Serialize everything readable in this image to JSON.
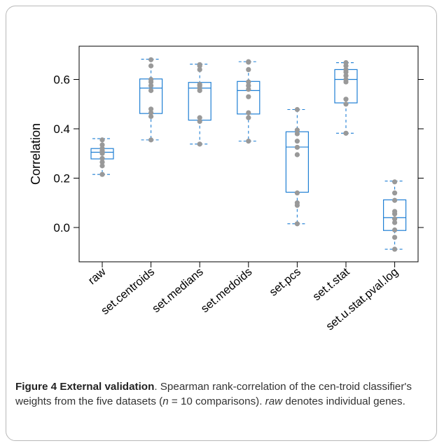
{
  "figure": {
    "label": "Figure 4",
    "title": "External validation",
    "caption_part1": ". Spearman rank-correlation of the cen-troid classifier's weights from the five datasets (",
    "caption_n": "n",
    "caption_part2": " = 10 comparisons).",
    "caption_raw": "raw",
    "caption_part3": " denotes individual genes."
  },
  "colors": {
    "box": "#1f7fd4",
    "point": "#999999",
    "frame": "#000000"
  },
  "chart_data": {
    "type": "box",
    "ylabel": "Correlation",
    "xlabel": "",
    "ylim": [
      -0.14,
      0.72
    ],
    "yticks": [
      0.0,
      0.2,
      0.4,
      0.6
    ],
    "ytick_labels": [
      "0.0",
      "0.2",
      "0.4",
      "0.6"
    ],
    "grid": false,
    "categories": [
      "raw",
      "set.centroids",
      "set.medians",
      "set.medoids",
      "set.pcs",
      "set.t.stat",
      "set.u.stat.pval.log"
    ],
    "boxes": [
      {
        "name": "raw",
        "whisker_low": 0.215,
        "q1": 0.278,
        "median": 0.305,
        "q3": 0.32,
        "whisker_high": 0.36
      },
      {
        "name": "set.centroids",
        "whisker_low": 0.355,
        "q1": 0.462,
        "median": 0.565,
        "q3": 0.602,
        "whisker_high": 0.682
      },
      {
        "name": "set.medians",
        "whisker_low": 0.338,
        "q1": 0.435,
        "median": 0.565,
        "q3": 0.588,
        "whisker_high": 0.662
      },
      {
        "name": "set.medoids",
        "whisker_low": 0.35,
        "q1": 0.46,
        "median": 0.555,
        "q3": 0.592,
        "whisker_high": 0.672
      },
      {
        "name": "set.pcs",
        "whisker_low": 0.015,
        "q1": 0.143,
        "median": 0.326,
        "q3": 0.388,
        "whisker_high": 0.478
      },
      {
        "name": "set.t.stat",
        "whisker_low": 0.382,
        "q1": 0.505,
        "median": 0.6,
        "q3": 0.64,
        "whisker_high": 0.668
      },
      {
        "name": "set.u.stat.pval.log",
        "whisker_low": -0.088,
        "q1": -0.012,
        "median": 0.04,
        "q3": 0.112,
        "whisker_high": 0.188
      }
    ],
    "points": [
      [
        0.215,
        0.25,
        0.265,
        0.28,
        0.3,
        0.305,
        0.31,
        0.32,
        0.335,
        0.355
      ],
      [
        0.355,
        0.45,
        0.465,
        0.48,
        0.555,
        0.575,
        0.59,
        0.6,
        0.655,
        0.68
      ],
      [
        0.338,
        0.43,
        0.445,
        0.555,
        0.565,
        0.575,
        0.58,
        0.64,
        0.655,
        0.66
      ],
      [
        0.35,
        0.445,
        0.465,
        0.53,
        0.56,
        0.575,
        0.59,
        0.64,
        0.67,
        0.672
      ],
      [
        0.015,
        0.09,
        0.1,
        0.14,
        0.295,
        0.325,
        0.35,
        0.38,
        0.395,
        0.478
      ],
      [
        0.382,
        0.5,
        0.52,
        0.59,
        0.6,
        0.615,
        0.63,
        0.64,
        0.655,
        0.668
      ],
      [
        -0.088,
        -0.04,
        -0.01,
        0.02,
        0.035,
        0.055,
        0.065,
        0.11,
        0.14,
        0.185
      ]
    ]
  }
}
